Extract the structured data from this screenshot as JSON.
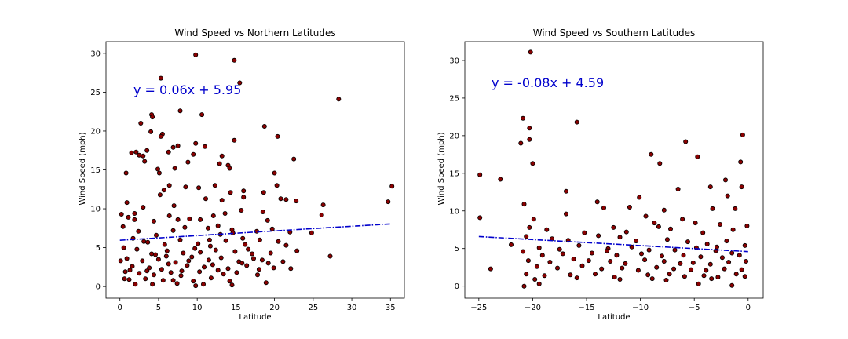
{
  "chart_data": [
    {
      "type": "scatter",
      "title": "Wind Speed vs Northern Latitudes",
      "xlabel": "Latitude",
      "ylabel": "Wind Speed (mph)",
      "xlim": [
        -1.8,
        36.8
      ],
      "ylim": [
        -1.5,
        31.5
      ],
      "xticks": [
        0,
        5,
        10,
        15,
        20,
        25,
        30,
        35
      ],
      "yticks": [
        0,
        5,
        10,
        15,
        20,
        25,
        30
      ],
      "grid": false,
      "marker_color": "#8b0000",
      "marker_edge": "#000000",
      "line_color": "#0000cc",
      "equation": "y = 0.06x + 5.95",
      "regression": {
        "slope": 0.06,
        "intercept": 5.95,
        "x_range": [
          0,
          35.1
        ]
      },
      "points": [
        [
          9.8,
          29.8
        ],
        [
          14.8,
          29.1
        ],
        [
          5.3,
          26.8
        ],
        [
          15.5,
          26.2
        ],
        [
          28.3,
          24.1
        ],
        [
          7.8,
          22.6
        ],
        [
          4.1,
          22.1
        ],
        [
          4.2,
          21.8
        ],
        [
          10.6,
          22.1
        ],
        [
          2.7,
          21.0
        ],
        [
          18.7,
          20.6
        ],
        [
          4.0,
          19.9
        ],
        [
          3.5,
          17.5
        ],
        [
          5.5,
          19.6
        ],
        [
          5.3,
          19.3
        ],
        [
          2.1,
          17.3
        ],
        [
          7.5,
          18.1
        ],
        [
          1.5,
          17.2
        ],
        [
          2.5,
          16.9
        ],
        [
          3.0,
          16.8
        ],
        [
          3.2,
          16.1
        ],
        [
          4.9,
          15.1
        ],
        [
          5.1,
          14.6
        ],
        [
          0.8,
          14.6
        ],
        [
          6.9,
          17.9
        ],
        [
          6.3,
          17.3
        ],
        [
          9.5,
          17.0
        ],
        [
          9.8,
          18.4
        ],
        [
          11.0,
          18.0
        ],
        [
          14.8,
          18.8
        ],
        [
          20.4,
          19.3
        ],
        [
          13.2,
          16.8
        ],
        [
          12.9,
          15.8
        ],
        [
          14.0,
          15.6
        ],
        [
          7.1,
          15.2
        ],
        [
          8.8,
          16.0
        ],
        [
          22.5,
          16.4
        ],
        [
          20.0,
          14.6
        ],
        [
          20.3,
          13.0
        ],
        [
          6.4,
          13.0
        ],
        [
          5.7,
          12.4
        ],
        [
          8.5,
          12.8
        ],
        [
          10.2,
          12.7
        ],
        [
          12.3,
          13.0
        ],
        [
          14.2,
          15.2
        ],
        [
          0.9,
          10.8
        ],
        [
          3.0,
          10.2
        ],
        [
          5.2,
          11.8
        ],
        [
          1.9,
          9.4
        ],
        [
          6.4,
          9.1
        ],
        [
          7.0,
          10.4
        ],
        [
          11.1,
          11.3
        ],
        [
          13.2,
          11.1
        ],
        [
          14.3,
          12.1
        ],
        [
          16.0,
          12.3
        ],
        [
          16.0,
          11.5
        ],
        [
          18.6,
          12.1
        ],
        [
          20.8,
          11.3
        ],
        [
          21.5,
          11.2
        ],
        [
          22.8,
          11.0
        ],
        [
          26.3,
          10.5
        ],
        [
          35.2,
          12.9
        ],
        [
          34.7,
          10.9
        ],
        [
          26.1,
          9.2
        ],
        [
          0.2,
          9.3
        ],
        [
          1.1,
          8.9
        ],
        [
          1.9,
          8.6
        ],
        [
          4.4,
          8.4
        ],
        [
          7.5,
          8.6
        ],
        [
          9.0,
          8.7
        ],
        [
          10.4,
          8.6
        ],
        [
          12.1,
          9.1
        ],
        [
          13.6,
          9.4
        ],
        [
          15.7,
          9.8
        ],
        [
          18.5,
          9.6
        ],
        [
          19.1,
          8.5
        ],
        [
          0.4,
          7.7
        ],
        [
          2.4,
          7.1
        ],
        [
          4.7,
          6.6
        ],
        [
          6.9,
          7.2
        ],
        [
          8.4,
          7.6
        ],
        [
          11.4,
          7.5
        ],
        [
          12.7,
          7.8
        ],
        [
          14.5,
          7.3
        ],
        [
          17.7,
          7.1
        ],
        [
          19.7,
          7.4
        ],
        [
          22.0,
          7.0
        ],
        [
          24.8,
          6.9
        ],
        [
          1.7,
          6.2
        ],
        [
          3.6,
          5.7
        ],
        [
          5.8,
          5.4
        ],
        [
          7.8,
          6.0
        ],
        [
          10.1,
          5.5
        ],
        [
          11.6,
          6.0
        ],
        [
          13.7,
          5.9
        ],
        [
          15.9,
          6.2
        ],
        [
          18.1,
          6.0
        ],
        [
          20.5,
          5.8
        ],
        [
          0.5,
          5.0
        ],
        [
          2.2,
          4.8
        ],
        [
          4.1,
          4.2
        ],
        [
          6.1,
          4.6
        ],
        [
          8.2,
          4.3
        ],
        [
          9.7,
          4.9
        ],
        [
          12.4,
          4.7
        ],
        [
          14.9,
          4.5
        ],
        [
          16.6,
          4.8
        ],
        [
          19.5,
          4.3
        ],
        [
          22.9,
          4.6
        ],
        [
          0.9,
          3.6
        ],
        [
          2.9,
          3.3
        ],
        [
          5.0,
          3.5
        ],
        [
          7.2,
          3.1
        ],
        [
          9.3,
          3.8
        ],
        [
          11.5,
          3.4
        ],
        [
          13.1,
          3.7
        ],
        [
          15.4,
          3.2
        ],
        [
          17.3,
          3.6
        ],
        [
          19.2,
          3.0
        ],
        [
          21.1,
          3.2
        ],
        [
          0.1,
          3.3
        ],
        [
          1.6,
          2.6
        ],
        [
          3.8,
          2.4
        ],
        [
          6.3,
          2.9
        ],
        [
          8.7,
          2.7
        ],
        [
          10.9,
          2.5
        ],
        [
          12.0,
          2.8
        ],
        [
          14.0,
          2.3
        ],
        [
          16.4,
          2.7
        ],
        [
          18.0,
          2.2
        ],
        [
          22.1,
          2.3
        ],
        [
          0.7,
          1.9
        ],
        [
          2.5,
          1.7
        ],
        [
          4.4,
          1.5
        ],
        [
          6.6,
          1.8
        ],
        [
          7.9,
          1.4
        ],
        [
          10.3,
          1.9
        ],
        [
          13.4,
          1.6
        ],
        [
          15.1,
          1.8
        ],
        [
          17.8,
          1.5
        ],
        [
          0.6,
          1.0
        ],
        [
          1.2,
          0.9
        ],
        [
          3.3,
          1.0
        ],
        [
          5.6,
          0.8
        ],
        [
          6.9,
          0.8
        ],
        [
          9.5,
          0.7
        ],
        [
          11.8,
          1.1
        ],
        [
          14.2,
          0.7
        ],
        [
          18.9,
          0.5
        ],
        [
          2.0,
          0.3
        ],
        [
          4.2,
          0.3
        ],
        [
          7.4,
          0.4
        ],
        [
          9.8,
          0.1
        ],
        [
          10.8,
          0.3
        ],
        [
          14.5,
          0.2
        ],
        [
          27.2,
          3.9
        ],
        [
          3.1,
          5.8
        ],
        [
          4.6,
          4.1
        ],
        [
          6.0,
          3.9
        ],
        [
          8.9,
          3.3
        ],
        [
          10.4,
          4.4
        ],
        [
          11.7,
          5.2
        ],
        [
          13.0,
          6.7
        ],
        [
          14.6,
          6.9
        ],
        [
          16.2,
          5.4
        ],
        [
          17.1,
          4.2
        ],
        [
          18.4,
          3.4
        ],
        [
          19.9,
          2.4
        ],
        [
          21.5,
          5.3
        ],
        [
          1.3,
          2.1
        ],
        [
          3.5,
          2.0
        ],
        [
          5.4,
          2.2
        ],
        [
          8.0,
          2.0
        ],
        [
          12.7,
          2.1
        ],
        [
          15.8,
          3.0
        ]
      ]
    },
    {
      "type": "scatter",
      "title": "Wind Speed vs Southern Latitudes",
      "xlabel": "Latitude",
      "ylabel": "Wind Speed (mph)",
      "xlim": [
        -26.3,
        1.4
      ],
      "ylim": [
        -1.6,
        32.5
      ],
      "xticks": [
        -25,
        -20,
        -15,
        -10,
        -5,
        0
      ],
      "yticks": [
        0,
        5,
        10,
        15,
        20,
        25,
        30
      ],
      "grid": false,
      "marker_color": "#8b0000",
      "marker_edge": "#000000",
      "line_color": "#0000cc",
      "equation": "y = -0.08x + 4.59",
      "regression": {
        "slope": -0.08,
        "intercept": 4.59,
        "x_range": [
          -25,
          0
        ]
      },
      "points": [
        [
          -20.2,
          31.1
        ],
        [
          -20.9,
          22.3
        ],
        [
          -20.3,
          21.0
        ],
        [
          -15.9,
          21.8
        ],
        [
          -20.3,
          19.5
        ],
        [
          -21.1,
          19.0
        ],
        [
          -20.0,
          16.3
        ],
        [
          -24.9,
          14.8
        ],
        [
          -23.0,
          14.2
        ],
        [
          -9.0,
          17.5
        ],
        [
          -8.2,
          16.3
        ],
        [
          -5.8,
          19.2
        ],
        [
          -4.7,
          17.2
        ],
        [
          -0.5,
          20.1
        ],
        [
          -0.7,
          16.5
        ],
        [
          -6.5,
          12.9
        ],
        [
          -2.1,
          14.1
        ],
        [
          -3.5,
          13.2
        ],
        [
          -16.9,
          12.6
        ],
        [
          -20.8,
          10.9
        ],
        [
          -10.1,
          11.8
        ],
        [
          -1.9,
          12.0
        ],
        [
          -0.6,
          13.2
        ],
        [
          -11.0,
          10.5
        ],
        [
          -7.8,
          10.1
        ],
        [
          -3.3,
          10.3
        ],
        [
          -24.9,
          9.1
        ],
        [
          -19.9,
          8.9
        ],
        [
          -16.9,
          9.6
        ],
        [
          -14.0,
          11.2
        ],
        [
          -13.4,
          10.4
        ],
        [
          -9.5,
          9.3
        ],
        [
          -8.7,
          8.4
        ],
        [
          -6.1,
          8.9
        ],
        [
          -4.9,
          8.4
        ],
        [
          -1.2,
          10.3
        ],
        [
          -0.1,
          8.0
        ],
        [
          -20.3,
          7.8
        ],
        [
          -18.7,
          7.5
        ],
        [
          -15.2,
          7.1
        ],
        [
          -12.5,
          7.8
        ],
        [
          -11.3,
          7.2
        ],
        [
          -8.3,
          7.9
        ],
        [
          -7.2,
          7.6
        ],
        [
          -4.2,
          7.1
        ],
        [
          -2.6,
          8.2
        ],
        [
          -1.4,
          7.5
        ],
        [
          -20.6,
          6.6
        ],
        [
          -18.2,
          6.3
        ],
        [
          -16.7,
          6.1
        ],
        [
          -13.9,
          6.7
        ],
        [
          -11.9,
          6.5
        ],
        [
          -10.4,
          6.0
        ],
        [
          -7.5,
          6.2
        ],
        [
          -5.6,
          5.9
        ],
        [
          -3.8,
          5.6
        ],
        [
          -2.0,
          6.0
        ],
        [
          -0.3,
          5.4
        ],
        [
          -22.0,
          5.5
        ],
        [
          -19.4,
          5.1
        ],
        [
          -17.5,
          4.9
        ],
        [
          -15.7,
          5.4
        ],
        [
          -13.0,
          5.0
        ],
        [
          -10.8,
          5.2
        ],
        [
          -9.2,
          4.8
        ],
        [
          -6.8,
          4.8
        ],
        [
          -4.8,
          5.1
        ],
        [
          -3.0,
          4.7
        ],
        [
          -1.5,
          4.4
        ],
        [
          -20.9,
          4.6
        ],
        [
          -19.1,
          4.1
        ],
        [
          -17.2,
          4.3
        ],
        [
          -14.5,
          4.4
        ],
        [
          -12.2,
          4.1
        ],
        [
          -9.9,
          4.3
        ],
        [
          -8.0,
          4.0
        ],
        [
          -6.0,
          4.1
        ],
        [
          -4.4,
          3.9
        ],
        [
          -2.4,
          3.8
        ],
        [
          -0.8,
          4.1
        ],
        [
          -20.4,
          3.4
        ],
        [
          -18.4,
          3.2
        ],
        [
          -16.2,
          3.6
        ],
        [
          -14.8,
          3.4
        ],
        [
          -12.8,
          3.3
        ],
        [
          -11.4,
          3.0
        ],
        [
          -9.6,
          3.5
        ],
        [
          -7.8,
          3.3
        ],
        [
          -6.3,
          3.0
        ],
        [
          -5.1,
          3.1
        ],
        [
          -3.5,
          2.9
        ],
        [
          -1.8,
          3.2
        ],
        [
          -0.2,
          3.3
        ],
        [
          -23.9,
          2.3
        ],
        [
          -19.6,
          2.6
        ],
        [
          -17.7,
          2.4
        ],
        [
          -15.4,
          2.7
        ],
        [
          -13.6,
          2.3
        ],
        [
          -11.7,
          2.4
        ],
        [
          -10.2,
          2.1
        ],
        [
          -8.5,
          2.5
        ],
        [
          -6.9,
          2.3
        ],
        [
          -5.3,
          2.2
        ],
        [
          -3.9,
          2.1
        ],
        [
          -2.2,
          2.3
        ],
        [
          -0.6,
          2.2
        ],
        [
          -20.6,
          1.6
        ],
        [
          -18.9,
          1.4
        ],
        [
          -16.5,
          1.5
        ],
        [
          -14.2,
          1.6
        ],
        [
          -12.4,
          1.2
        ],
        [
          -9.3,
          1.5
        ],
        [
          -7.3,
          1.6
        ],
        [
          -5.9,
          1.3
        ],
        [
          -4.1,
          1.4
        ],
        [
          -2.8,
          1.2
        ],
        [
          -1.1,
          1.6
        ],
        [
          -0.3,
          1.3
        ],
        [
          -19.8,
          0.9
        ],
        [
          -15.9,
          1.1
        ],
        [
          -11.9,
          0.9
        ],
        [
          -7.6,
          0.8
        ],
        [
          -4.6,
          0.3
        ],
        [
          -1.5,
          0.1
        ],
        [
          -19.4,
          0.3
        ],
        [
          -20.8,
          0.0
        ],
        [
          -8.9,
          1.0
        ],
        [
          -3.4,
          1.0
        ],
        [
          -13.1,
          4.7
        ],
        [
          -2.9,
          5.2
        ]
      ]
    }
  ]
}
